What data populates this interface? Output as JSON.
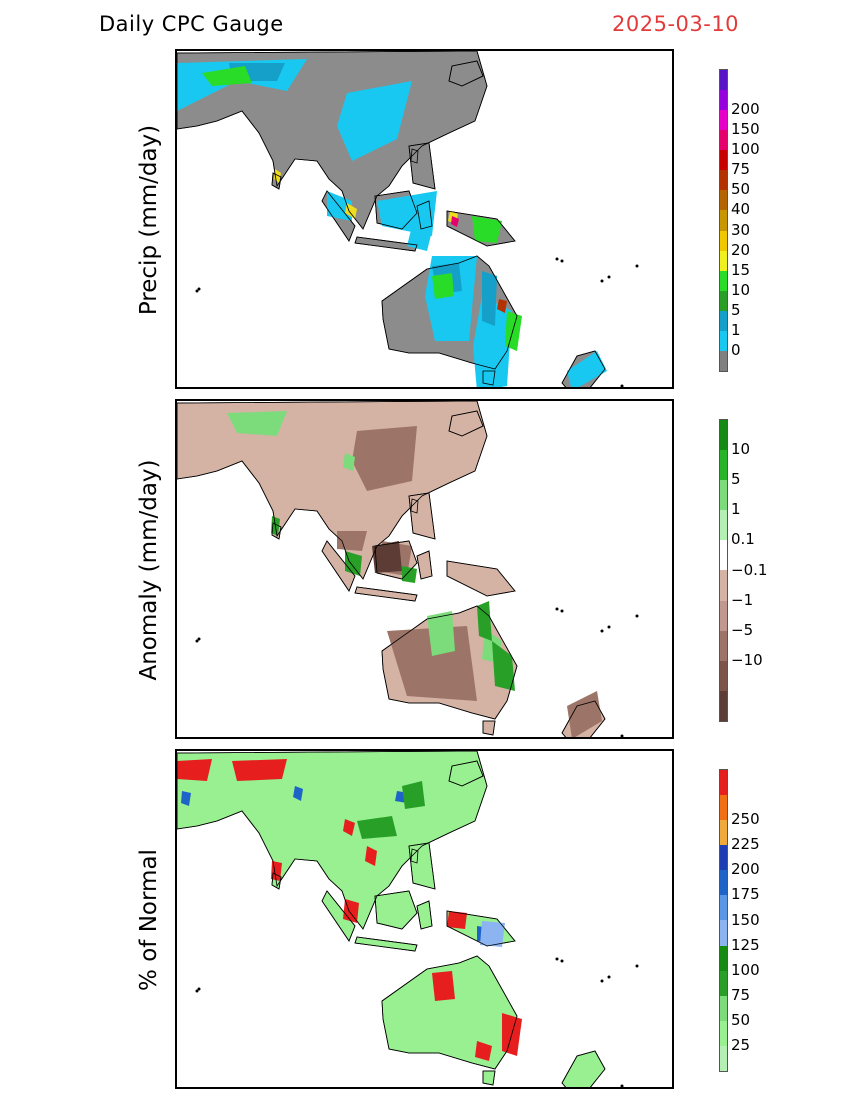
{
  "header": {
    "title": "Daily CPC Gauge",
    "date": "2025-03-10"
  },
  "panels": [
    {
      "ylabel": "Precip (mm/day)",
      "land": "#8c8c8c",
      "blobs": [
        {
          "c": "#19c8f0",
          "p": "0,12 130,8 110,40 60,30 0,60"
        },
        {
          "c": "#19c8f0",
          "p": "170,42 235,30 220,88 175,110 160,75"
        },
        {
          "c": "#19c8f0",
          "p": "200,150 260,140 255,185 205,175"
        },
        {
          "c": "#19c8f0",
          "p": "255,205 300,205 292,290 258,290 248,245"
        },
        {
          "c": "#19c8f0",
          "p": "305,245 335,260 330,335 300,340 296,295"
        },
        {
          "c": "#19c8f0",
          "p": "390,320 420,300 430,320 395,340"
        },
        {
          "c": "#19c8f0",
          "p": "150,140 175,150 175,170 150,165"
        },
        {
          "c": "#19c8f0",
          "p": "235,175 255,180 250,200 230,195"
        },
        {
          "c": "#14a0c8",
          "p": "52,12 108,12 100,30 55,30"
        },
        {
          "c": "#14a0c8",
          "p": "255,215 282,212 285,240 260,243"
        },
        {
          "c": "#14a0c8",
          "p": "305,220 320,225 318,275 305,270"
        },
        {
          "c": "#28dc28",
          "p": "25,22 68,15 75,32 35,35"
        },
        {
          "c": "#28dc28",
          "p": "255,225 275,222 277,245 258,248"
        },
        {
          "c": "#28dc28",
          "p": "295,165 325,170 320,192 298,190"
        },
        {
          "c": "#28dc28",
          "p": "330,260 345,265 340,300 328,295"
        },
        {
          "c": "#f0dc1e",
          "p": "170,152 180,158 178,168 168,162"
        },
        {
          "c": "#f0dc1e",
          "p": "98,118 104,122 102,132 97,128"
        },
        {
          "c": "#f0dc1e",
          "p": "273,160 281,163 279,173 271,170"
        },
        {
          "c": "#b43200",
          "p": "322,248 330,250 328,262 320,258"
        },
        {
          "c": "#e6006e",
          "p": "275,165 282,168 280,176 274,173"
        }
      ]
    },
    {
      "ylabel": "Anomaly (mm/day)",
      "land": "#d4b2a4",
      "blobs": [
        {
          "c": "#9c7468",
          "p": "180,30 240,25 235,80 190,90 175,60"
        },
        {
          "c": "#9c7468",
          "p": "205,140 235,145 230,175 200,170"
        },
        {
          "c": "#5c3c34",
          "p": "195,145 222,140 225,170 198,172"
        },
        {
          "c": "#9c7468",
          "p": "210,230 290,225 300,300 230,295"
        },
        {
          "c": "#9c7468",
          "p": "160,130 190,130 185,150 160,148"
        },
        {
          "c": "#9c7468",
          "p": "390,305 420,290 425,320 395,338"
        },
        {
          "c": "#7cdc7c",
          "p": "50,12 110,10 100,35 60,32"
        },
        {
          "c": "#7cdc7c",
          "p": "250,215 275,210 278,250 255,255"
        },
        {
          "c": "#7cdc7c",
          "p": "308,228 325,240 320,262 305,258"
        },
        {
          "c": "#7cdc7c",
          "p": "168,52 178,56 176,70 166,66"
        },
        {
          "c": "#28a028",
          "p": "315,240 335,255 338,290 318,285"
        },
        {
          "c": "#28a028",
          "p": "300,205 312,200 315,240 302,235"
        },
        {
          "c": "#28a028",
          "p": "168,150 185,155 183,175 168,170"
        },
        {
          "c": "#28a028",
          "p": "225,165 240,168 238,182 225,180"
        },
        {
          "c": "#28a028",
          "p": "95,115 103,118 101,135 94,132"
        }
      ]
    },
    {
      "ylabel": "% of Normal",
      "land": "#98f090",
      "blobs": [
        {
          "c": "#e61e1e",
          "p": "55,10 110,8 105,28 60,30"
        },
        {
          "c": "#e61e1e",
          "p": "0,10 35,8 30,30 0,28"
        },
        {
          "c": "#e61e1e",
          "p": "255,222 275,220 278,248 258,250"
        },
        {
          "c": "#e61e1e",
          "p": "325,262 345,268 340,305 325,300"
        },
        {
          "c": "#e61e1e",
          "p": "300,290 315,295 312,310 298,306"
        },
        {
          "c": "#e61e1e",
          "p": "168,148 182,152 180,172 166,168"
        },
        {
          "c": "#e61e1e",
          "p": "95,110 105,112 103,130 94,128"
        },
        {
          "c": "#e61e1e",
          "p": "272,160 290,162 288,178 270,176"
        },
        {
          "c": "#e61e1e",
          "p": "190,95 200,100 198,115 188,110"
        },
        {
          "c": "#e61e1e",
          "p": "168,68 178,72 175,85 166,80"
        },
        {
          "c": "#1e64c8",
          "p": "300,175 320,178 318,192 300,190"
        },
        {
          "c": "#1e64c8",
          "p": "220,40 232,42 230,52 218,50"
        },
        {
          "c": "#1e64c8",
          "p": "118,35 126,38 124,50 116,46"
        },
        {
          "c": "#1e64c8",
          "p": "5,40 14,42 12,55 4,52"
        },
        {
          "c": "#8cb4f0",
          "p": "305,170 328,172 325,196 303,194"
        },
        {
          "c": "#28a028",
          "p": "180,70 215,65 220,85 185,88"
        },
        {
          "c": "#28a028",
          "p": "225,35 245,30 248,55 228,58"
        }
      ]
    }
  ],
  "colorbars": [
    {
      "colors": [
        "#808080",
        "#19c8f0",
        "#14a0c8",
        "#28a028",
        "#28dc28",
        "#f0f01e",
        "#f0c800",
        "#c89600",
        "#b46400",
        "#b43200",
        "#c80000",
        "#e6006e",
        "#e600c8",
        "#9600dc",
        "#5a14c8"
      ],
      "labels": [
        "0",
        "1",
        "5",
        "10",
        "15",
        "20",
        "30",
        "40",
        "50",
        "75",
        "100",
        "150",
        "200"
      ]
    },
    {
      "colors": [
        "#5c3c34",
        "#7c5448",
        "#9c7468",
        "#c09890",
        "#d4b2a4",
        "#ffffff",
        "#b4f0b4",
        "#7cdc7c",
        "#28b428",
        "#148c14"
      ],
      "labels": [
        "−10",
        "−5",
        "−1",
        "−0.1",
        "0.1",
        "1",
        "5",
        "10"
      ]
    },
    {
      "colors": [
        "#b4f0b4",
        "#98f090",
        "#7cdc7c",
        "#28a028",
        "#148c14",
        "#8cb4f0",
        "#5a96e6",
        "#1e64c8",
        "#1e3cb4",
        "#f0aa3c",
        "#f06e14",
        "#e61e1e"
      ],
      "labels": [
        "25",
        "50",
        "75",
        "100",
        "125",
        "150",
        "175",
        "200",
        "225",
        "250"
      ]
    }
  ]
}
